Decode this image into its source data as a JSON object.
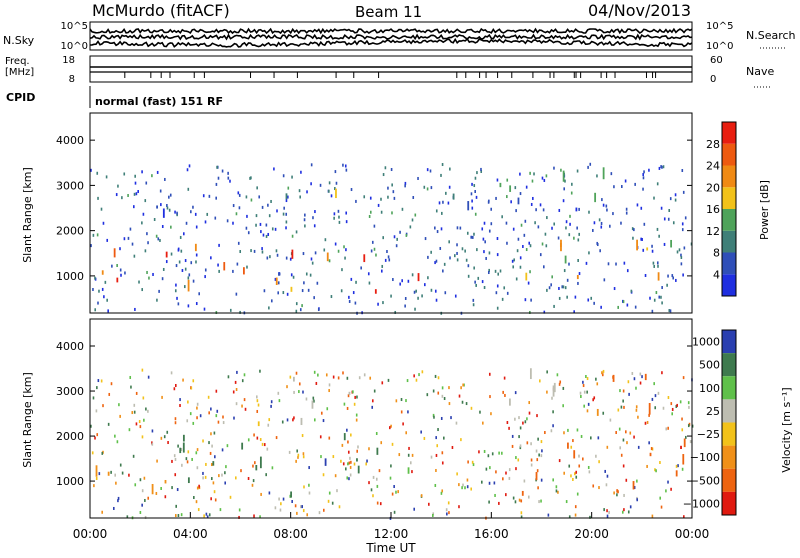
{
  "header": {
    "station": "McMurdo (fitACF)",
    "beam": "Beam 11",
    "date": "04/Nov/2013"
  },
  "status_panels": {
    "nsky_label": "N.Sky",
    "nsearch_label": "N.Search",
    "freq_label_1": "Freq.",
    "freq_label_2": "[MHz]",
    "nave_label": "Nave",
    "cpid_label": "CPID",
    "cpid_text": "normal (fast) 151 RF",
    "noise_ticks_left": [
      "10^5",
      "10^0"
    ],
    "noise_ticks_right": [
      "10^5",
      "10^0"
    ],
    "freq_ticks_left": [
      "18",
      "8"
    ],
    "nave_ticks_right": [
      "60",
      "0"
    ]
  },
  "x_axis": {
    "label": "Time UT",
    "ticks": [
      "00:00",
      "04:00",
      "08:00",
      "12:00",
      "16:00",
      "20:00",
      "00:00"
    ]
  },
  "colors": {
    "power": [
      "#1f2fe0",
      "#2f4fb8",
      "#3f7f78",
      "#4fa35a",
      "#f2c21a",
      "#f08a14",
      "#ee5a10",
      "#e81e10"
    ],
    "velocity": [
      "#2a3fb0",
      "#3e7a4e",
      "#5fc04a",
      "#bdbdb1",
      "#f2c21a",
      "#f09018",
      "#ee6410",
      "#e01a10"
    ]
  },
  "chart_data": [
    {
      "type": "heatmap",
      "title": "",
      "xlabel": "Time UT",
      "ylabel": "Slant Range [km]",
      "xlim": [
        0,
        24
      ],
      "ylim": [
        180,
        4600
      ],
      "y_ticks": [
        "1000",
        "2000",
        "3000",
        "4000"
      ],
      "y_tick_values": [
        1000,
        2000,
        3000,
        4000
      ],
      "colorbar": {
        "label": "Power [dB]",
        "ticks": [
          "4",
          "8",
          "12",
          "16",
          "20",
          "24",
          "28"
        ],
        "tick_values": [
          4,
          8,
          12,
          16,
          20,
          24,
          28
        ],
        "range": [
          0,
          32
        ]
      },
      "bands": [
        {
          "t0": 0.2,
          "t1": 4.0,
          "r0": 600,
          "r1": 1700,
          "level": 0.8
        },
        {
          "t0": 4.0,
          "t1": 8.0,
          "r0": 600,
          "r1": 1800,
          "level": 0.7
        },
        {
          "t0": 8.0,
          "t1": 12.0,
          "r0": 600,
          "r1": 1400,
          "level": 0.85
        },
        {
          "t0": 12.0,
          "t1": 13.5,
          "r0": 480,
          "r1": 900,
          "level": 1.0
        },
        {
          "t0": 16.0,
          "t1": 24.0,
          "r0": 700,
          "r1": 1700,
          "level": 0.55
        },
        {
          "t0": 1.0,
          "t1": 7.0,
          "r0": 2200,
          "r1": 2500,
          "level": 0.2
        },
        {
          "t0": 7.0,
          "t1": 10.0,
          "r0": 2600,
          "r1": 3300,
          "level": 0.35
        },
        {
          "t0": 14.0,
          "t1": 22.0,
          "r0": 2200,
          "r1": 3200,
          "level": 0.25
        }
      ]
    },
    {
      "type": "heatmap",
      "title": "",
      "xlabel": "Time UT",
      "ylabel": "Slant Range [km]",
      "xlim": [
        0,
        24
      ],
      "ylim": [
        180,
        4600
      ],
      "y_ticks": [
        "1000",
        "2000",
        "3000",
        "4000"
      ],
      "y_tick_values": [
        1000,
        2000,
        3000,
        4000
      ],
      "colorbar": {
        "label": "Velocity [m s⁻¹]",
        "ticks": [
          "1000",
          "500",
          "100",
          "25",
          "−25",
          "−100",
          "−500",
          "−1000"
        ]
      },
      "bands": [
        {
          "t0": 0.1,
          "t1": 3.0,
          "r0": 500,
          "r1": 1600,
          "class": 5
        },
        {
          "t0": 3.0,
          "t1": 12.0,
          "r0": 600,
          "r1": 2000,
          "class": 1
        },
        {
          "t0": 12.0,
          "t1": 13.5,
          "r0": 600,
          "r1": 1200,
          "class": 2
        },
        {
          "t0": 15.5,
          "t1": 24.0,
          "r0": 650,
          "r1": 1800,
          "class": 6
        },
        {
          "t0": 3.0,
          "t1": 8.5,
          "r0": 2200,
          "r1": 2600,
          "class": 3
        },
        {
          "t0": 8.0,
          "t1": 10.5,
          "r0": 2400,
          "r1": 3400,
          "class": 3
        },
        {
          "t0": 16.5,
          "t1": 20.0,
          "r0": 2300,
          "r1": 3300,
          "class": 3
        },
        {
          "t0": 20.0,
          "t1": 23.5,
          "r0": 2200,
          "r1": 3300,
          "class": 6
        }
      ]
    }
  ]
}
